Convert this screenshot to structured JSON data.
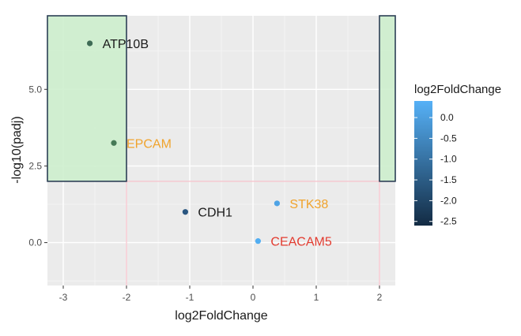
{
  "chart_data": {
    "type": "scatter",
    "title": "",
    "xlabel": "log2FoldChange",
    "ylabel": "-log10(padj)",
    "xlim": [
      -3.25,
      2.25
    ],
    "ylim": [
      -1.4,
      7.4
    ],
    "x_ticks": [
      -3,
      -2,
      -1,
      0,
      1,
      2
    ],
    "x_tick_labels": [
      "-3",
      "-2",
      "-1",
      "0",
      "1",
      "2"
    ],
    "y_ticks": [
      0.0,
      2.5,
      5.0
    ],
    "y_tick_labels": [
      "0.0",
      "2.5",
      "5.0"
    ],
    "grid": true,
    "threshold_x": [
      -2,
      2
    ],
    "threshold_y": 2,
    "highlight_regions": [
      {
        "x": [
          -3.25,
          -2
        ],
        "y": [
          2,
          7.4
        ],
        "fill": "#cdeecd",
        "stroke": "#2b3f55"
      },
      {
        "x": [
          2,
          2.25
        ],
        "y": [
          2,
          7.4
        ],
        "fill": "#cdeecd",
        "stroke": "#2b3f55"
      }
    ],
    "points": [
      {
        "label": "ATP10B",
        "x": -2.58,
        "y": 6.5,
        "color": "#3e6b55",
        "label_color": "#1a1a1a"
      },
      {
        "label": "EPCAM",
        "x": -2.2,
        "y": 3.25,
        "color": "#467a57",
        "label_color": "#f0a32c"
      },
      {
        "label": "CDH1",
        "x": -1.07,
        "y": 1.0,
        "color": "#2a5680",
        "label_color": "#1a1a1a"
      },
      {
        "label": "STK38",
        "x": 0.38,
        "y": 1.28,
        "color": "#4ea3e5",
        "label_color": "#f0a32c"
      },
      {
        "label": "CEACAM5",
        "x": 0.08,
        "y": 0.05,
        "color": "#52aef2",
        "label_color": "#e33b2f"
      }
    ],
    "legend": {
      "title": "log2FoldChange",
      "position": "right",
      "color_low": "#132b43",
      "color_high": "#56b1f7",
      "range": [
        -2.6,
        0.4
      ],
      "ticks": [
        0.0,
        -0.5,
        -1.0,
        -1.5,
        -2.0,
        -2.5
      ],
      "tick_labels": [
        "0.0",
        "-0.5",
        "-1.0",
        "-1.5",
        "-2.0",
        "-2.5"
      ]
    }
  }
}
